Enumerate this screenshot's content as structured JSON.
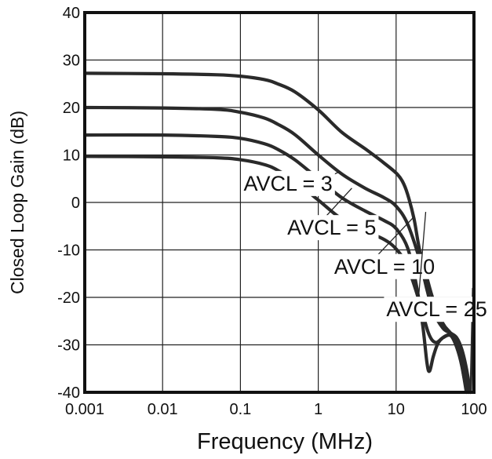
{
  "chart_data": {
    "type": "line",
    "xlabel": "Frequency (MHz)",
    "ylabel": "Closed Loop Gain (dB)",
    "xscale": "log",
    "xlim": [
      0.001,
      100
    ],
    "ylim": [
      -40,
      40
    ],
    "grid": true,
    "x_ticks": [
      {
        "value": 0.001,
        "label": "0.001"
      },
      {
        "value": 0.01,
        "label": "0.01"
      },
      {
        "value": 0.1,
        "label": "0.1"
      },
      {
        "value": 1,
        "label": "1"
      },
      {
        "value": 10,
        "label": "10"
      },
      {
        "value": 100,
        "label": "100"
      }
    ],
    "y_ticks": [
      {
        "value": 40,
        "label": "40"
      },
      {
        "value": 30,
        "label": "30"
      },
      {
        "value": 20,
        "label": "20"
      },
      {
        "value": 10,
        "label": "10"
      },
      {
        "value": 0,
        "label": "0"
      },
      {
        "value": -10,
        "label": "-10"
      },
      {
        "value": -20,
        "label": "-20"
      },
      {
        "value": -30,
        "label": "-30"
      },
      {
        "value": -40,
        "label": "-40"
      }
    ],
    "series": [
      {
        "name": "AVCL = 3",
        "color": "#2a2a2a",
        "points": [
          [
            0.001,
            9.7
          ],
          [
            0.01,
            9.6
          ],
          [
            0.05,
            9.4
          ],
          [
            0.1,
            9.0
          ],
          [
            0.2,
            8.0
          ],
          [
            0.3,
            6.8
          ],
          [
            0.5,
            4.5
          ],
          [
            1,
            0.5
          ],
          [
            2,
            -3.5
          ],
          [
            4,
            -6.0
          ],
          [
            7,
            -7.8
          ],
          [
            10,
            -9.8
          ],
          [
            14,
            -13.5
          ],
          [
            20,
            -21
          ],
          [
            26,
            -27.5
          ],
          [
            32,
            -29.5
          ],
          [
            40,
            -28.5
          ],
          [
            50,
            -28.0
          ],
          [
            60,
            -30.5
          ],
          [
            70,
            -34.5
          ],
          [
            80,
            -40
          ]
        ]
      },
      {
        "name": "AVCL = 5",
        "color": "#2a2a2a",
        "points": [
          [
            0.001,
            14.2
          ],
          [
            0.01,
            14.2
          ],
          [
            0.05,
            13.9
          ],
          [
            0.1,
            13.5
          ],
          [
            0.2,
            12.4
          ],
          [
            0.3,
            11.2
          ],
          [
            0.5,
            9.0
          ],
          [
            1,
            5.0
          ],
          [
            2,
            1.0
          ],
          [
            4,
            -1.8
          ],
          [
            7,
            -3.8
          ],
          [
            10,
            -5.5
          ],
          [
            14,
            -9.5
          ],
          [
            18,
            -17
          ],
          [
            22,
            -26
          ],
          [
            25,
            -34
          ],
          [
            27,
            -35.5
          ],
          [
            30,
            -32.5
          ],
          [
            35,
            -29.5
          ],
          [
            45,
            -28.0
          ],
          [
            55,
            -28.5
          ],
          [
            65,
            -31.5
          ],
          [
            75,
            -37
          ],
          [
            85,
            -40
          ]
        ]
      },
      {
        "name": "AVCL = 10",
        "color": "#2a2a2a",
        "points": [
          [
            0.001,
            20.0
          ],
          [
            0.01,
            19.9
          ],
          [
            0.05,
            19.6
          ],
          [
            0.1,
            19.0
          ],
          [
            0.2,
            17.8
          ],
          [
            0.3,
            16.5
          ],
          [
            0.5,
            14.3
          ],
          [
            1,
            10.0
          ],
          [
            2,
            6.0
          ],
          [
            4,
            3.0
          ],
          [
            7,
            1.0
          ],
          [
            10,
            -0.8
          ],
          [
            14,
            -4.5
          ],
          [
            20,
            -12
          ],
          [
            25,
            -18.5
          ],
          [
            30,
            -23.0
          ],
          [
            40,
            -26.5
          ],
          [
            50,
            -27.5
          ],
          [
            60,
            -28.5
          ],
          [
            70,
            -31
          ],
          [
            80,
            -35
          ],
          [
            90,
            -40
          ]
        ]
      },
      {
        "name": "AVCL = 25",
        "color": "#2a2a2a",
        "points": [
          [
            0.001,
            27.2
          ],
          [
            0.01,
            27.1
          ],
          [
            0.05,
            26.9
          ],
          [
            0.1,
            26.6
          ],
          [
            0.2,
            25.9
          ],
          [
            0.3,
            25.0
          ],
          [
            0.5,
            23.3
          ],
          [
            1,
            19.5
          ],
          [
            2,
            14.8
          ],
          [
            4,
            11.3
          ],
          [
            7,
            8.3
          ],
          [
            10,
            6.2
          ],
          [
            12,
            4.5
          ],
          [
            14,
            1.8
          ],
          [
            17,
            -3.5
          ],
          [
            20,
            -10
          ],
          [
            25,
            -16
          ],
          [
            30,
            -20.5
          ],
          [
            40,
            -25.5
          ],
          [
            50,
            -27.5
          ],
          [
            60,
            -29.5
          ],
          [
            70,
            -33
          ],
          [
            80,
            -38
          ],
          [
            90,
            -40
          ]
        ]
      }
    ],
    "annotations": [
      {
        "text": "AVCL = 3",
        "x": 0.11,
        "y": 2.5,
        "line_from": [
          0.87,
          4.0
        ],
        "line_to": [
          1.9,
          6.5
        ]
      },
      {
        "text": "AVCL = 5",
        "x": 0.4,
        "y": -6.8,
        "line_from": [
          0.9,
          -5.5
        ],
        "line_to": [
          2.7,
          3.0
        ]
      },
      {
        "text": "AVCL = 10",
        "x": 1.6,
        "y": -15.0,
        "line_from": [
          4.2,
          -13.5
        ],
        "line_to": [
          17,
          -3.0
        ]
      },
      {
        "text": "AVCL = 25",
        "x": 7.5,
        "y": -24.0,
        "line_from": [
          19,
          -22.0
        ],
        "line_to": [
          24,
          -2.0
        ]
      }
    ]
  }
}
